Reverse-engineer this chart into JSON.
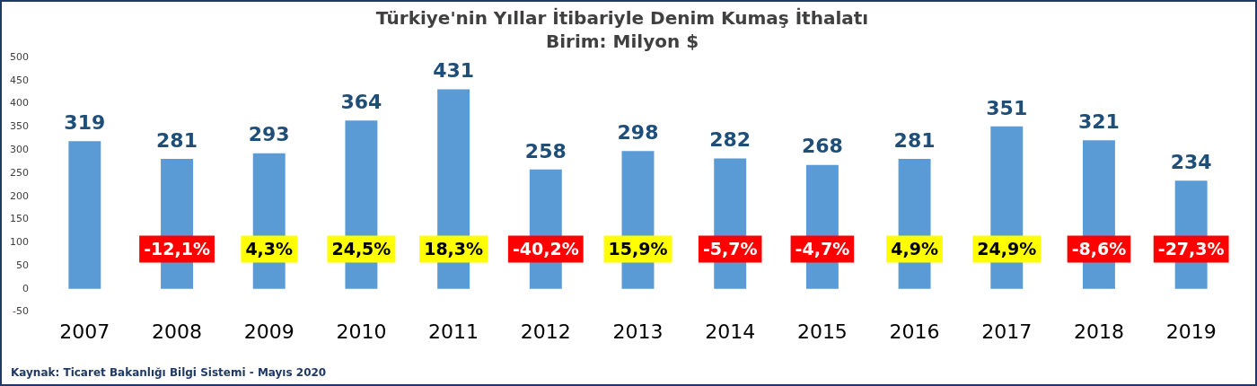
{
  "chart_data": {
    "type": "bar",
    "title": "Türkiye'nin Yıllar İtibariyle Denim Kumaş İthalatı",
    "subtitle": "Birim: Milyon $",
    "categories": [
      "2007",
      "2008",
      "2009",
      "2010",
      "2011",
      "2012",
      "2013",
      "2014",
      "2015",
      "2016",
      "2017",
      "2018",
      "2019"
    ],
    "values": [
      319,
      281,
      293,
      364,
      431,
      258,
      298,
      282,
      268,
      281,
      351,
      321,
      234
    ],
    "color": "#5b9bd5",
    "data_labels": true,
    "grid": false,
    "legend": false,
    "ylim": [
      -50,
      500
    ],
    "yticks": [
      -50,
      0,
      50,
      100,
      150,
      200,
      250,
      300,
      350,
      400,
      450,
      500
    ],
    "annotations": [
      "-12,1%",
      "4,3%",
      "24,5%",
      "18,3%",
      "-40,2%",
      "15,9%",
      "-5,7%",
      "-4,7%",
      "4,9%",
      "24,9%",
      "-8,6%",
      "-27,3%",
      "Kaynak: Ticaret Bakanlığı Bilgi Sistemi - Mayıs 2020"
    ]
  }
}
